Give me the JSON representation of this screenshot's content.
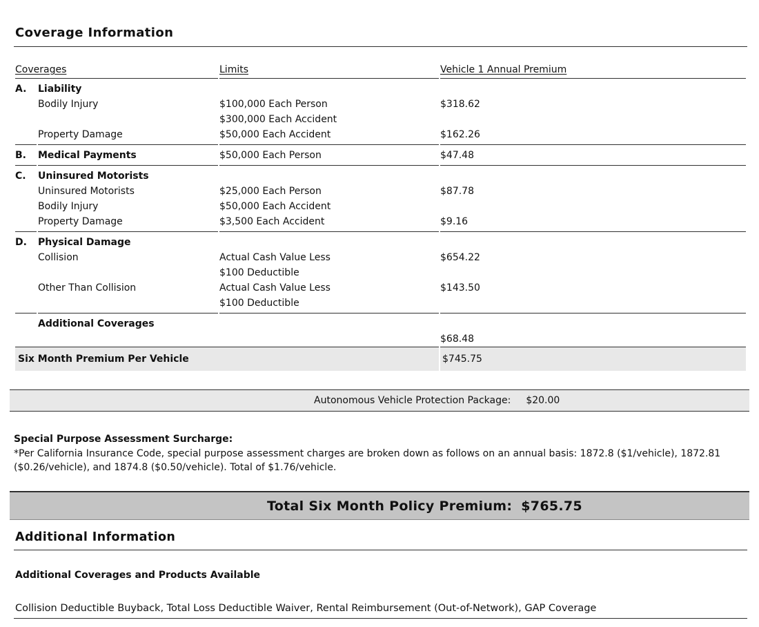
{
  "title": "Coverage Information",
  "table": {
    "headers": {
      "coverages": "Coverages",
      "limits": "Limits",
      "premium": "Vehicle 1 Annual Premium"
    },
    "rows": {
      "a_letter": "A.",
      "a_name": "Liability",
      "bodily_injury": "Bodily Injury",
      "bi_limit1": "$100,000 Each Person",
      "bi_limit2": "$300,000 Each Accident",
      "bi_premium": "$318.62",
      "property_damage": "Property Damage",
      "pd_limit": "$50,000 Each Accident",
      "pd_premium": "$162.26",
      "b_letter": "B.",
      "b_name": "Medical Payments",
      "mp_limit": "$50,000 Each Person",
      "mp_premium": "$47.48",
      "c_letter": "C.",
      "c_name": "Uninsured Motorists",
      "um_name": "Uninsured Motorists",
      "um_limit": "$25,000 Each Person",
      "um_premium": "$87.78",
      "umbi_name": "Bodily Injury",
      "umbi_limit": "$50,000 Each Accident",
      "umpd_name": "Property Damage",
      "umpd_limit": "$3,500 Each Accident",
      "umpd_premium": "$9.16",
      "d_letter": "D.",
      "d_name": "Physical Damage",
      "collision_name": "Collision",
      "collision_limit1": "Actual Cash Value Less",
      "collision_limit2": "$100 Deductible",
      "collision_premium": "$654.22",
      "otc_name": "Other Than Collision",
      "otc_limit1": "Actual Cash Value Less",
      "otc_limit2": "$100 Deductible",
      "otc_premium": "$143.50",
      "additional_coverages_label": "Additional Coverages",
      "additional_coverages_premium": "$68.48",
      "six_month_label": "Six Month Premium Per Vehicle",
      "six_month_premium": "$745.75"
    }
  },
  "avp_band": {
    "label": "Autonomous Vehicle Protection Package:",
    "amount": "$20.00"
  },
  "surcharge": {
    "heading": "Special Purpose Assessment Surcharge:",
    "body": "*Per California Insurance Code, special purpose assessment charges are broken down as follows on an annual basis: 1872.8 ($1/vehicle), 1872.81 ($0.26/vehicle), and 1874.8 ($0.50/vehicle). Total of $1.76/vehicle."
  },
  "total_bar": {
    "label": "Total Six Month Policy Premium:",
    "amount": "$765.75"
  },
  "additional_info": {
    "title": "Additional Information",
    "subheading": "Additional Coverages and Products Available",
    "products": "Collision Deductible Buyback, Total Loss Deductible Waiver, Rental Reimbursement (Out-of-Network), GAP Coverage"
  },
  "colors": {
    "band_gray": "#e8e8e8",
    "total_bar_gray": "#c4c4c4",
    "rule_dark": "#2f2f2f",
    "text": "#111111"
  }
}
